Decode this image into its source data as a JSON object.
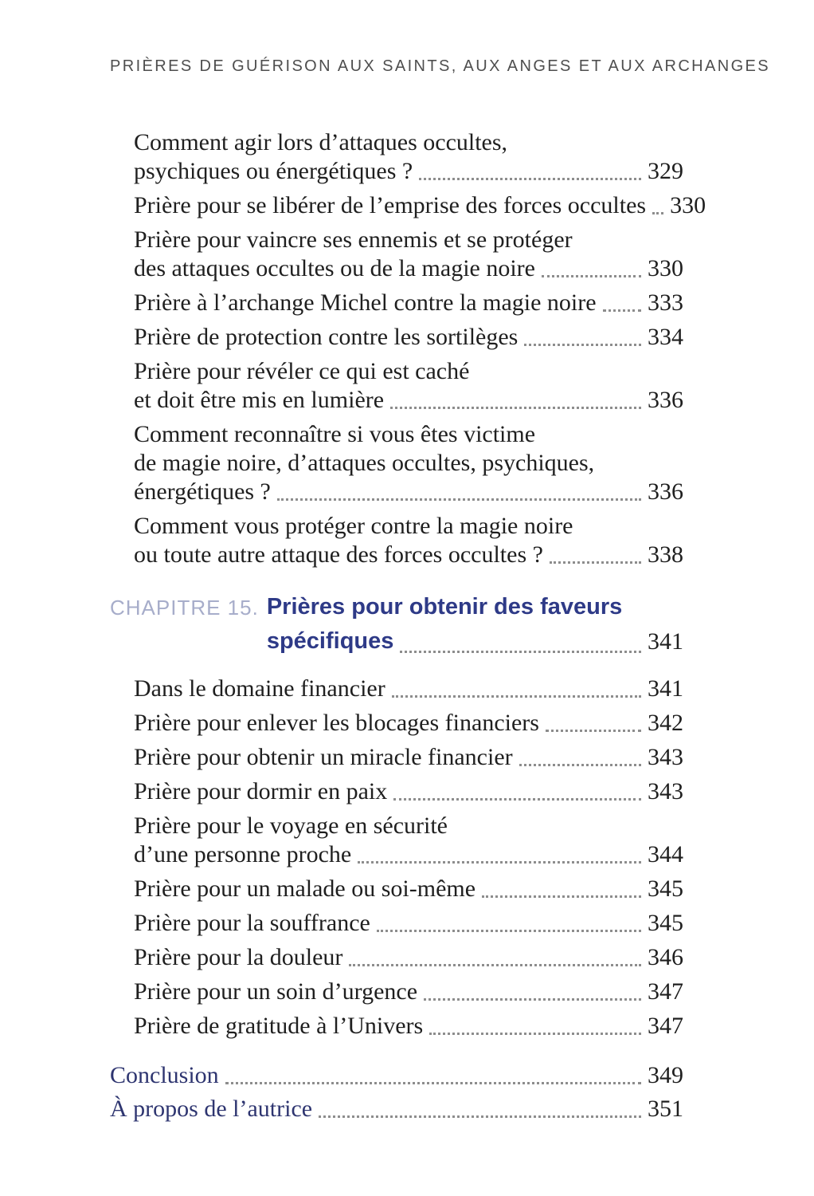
{
  "colors": {
    "chapter_label": "#a7adca",
    "chapter_title": "#2e3a87",
    "backmatter_link": "#2e3570",
    "body_text": "#1f1f1f",
    "running_header": "#4e4e4e",
    "leader_dots": "#8d8d8d"
  },
  "page": {
    "running_header": "PRIÈRES DE GUÉRISON AUX SAINTS, AUX ANGES ET AUX ARCHANGES"
  },
  "toc": {
    "section1_entries": [
      {
        "lines": [
          "Comment agir lors d’attaques occultes,",
          "psychiques ou énergétiques ?"
        ],
        "page": "329"
      },
      {
        "lines": [
          "Prière pour se libérer de l’emprise des forces occultes"
        ],
        "page": "330"
      },
      {
        "lines": [
          "Prière pour vaincre ses ennemis et se protéger",
          "des attaques occultes ou de la magie noire"
        ],
        "page": "330"
      },
      {
        "lines": [
          "Prière à l’archange Michel contre la magie noire"
        ],
        "page": "333"
      },
      {
        "lines": [
          "Prière de protection contre les sortilèges"
        ],
        "page": "334"
      },
      {
        "lines": [
          "Prière pour révéler ce qui est caché",
          "et doit être mis en lumière"
        ],
        "page": "336"
      },
      {
        "lines": [
          "Comment reconnaître si vous êtes victime",
          "de magie noire, d’attaques occultes, psychiques,",
          "énergétiques ?"
        ],
        "page": "336"
      },
      {
        "lines": [
          "Comment vous protéger contre la magie noire",
          "ou toute autre attaque des forces occultes ?"
        ],
        "page": "338"
      }
    ],
    "chapter": {
      "label": "CHAPITRE 15.",
      "title_line1": "Prières pour obtenir des faveurs",
      "title_line2": "spécifiques",
      "page": "341"
    },
    "section2_entries": [
      {
        "lines": [
          "Dans le domaine financier"
        ],
        "page": "341"
      },
      {
        "lines": [
          "Prière pour enlever les blocages financiers"
        ],
        "page": "342"
      },
      {
        "lines": [
          "Prière pour obtenir un miracle financier"
        ],
        "page": "343"
      },
      {
        "lines": [
          "Prière pour dormir en paix"
        ],
        "page": "343"
      },
      {
        "lines": [
          "Prière pour le voyage en sécurité",
          "d’une personne proche"
        ],
        "page": "344"
      },
      {
        "lines": [
          "Prière pour un malade ou soi-même"
        ],
        "page": "345"
      },
      {
        "lines": [
          "Prière pour la souffrance"
        ],
        "page": "345"
      },
      {
        "lines": [
          "Prière pour la douleur"
        ],
        "page": "346"
      },
      {
        "lines": [
          "Prière pour un soin d’urgence"
        ],
        "page": "347"
      },
      {
        "lines": [
          "Prière de gratitude à l’Univers"
        ],
        "page": "347"
      }
    ],
    "backmatter_entries": [
      {
        "lines": [
          "Conclusion"
        ],
        "page": "349"
      },
      {
        "lines": [
          "À propos de l’autrice"
        ],
        "page": "351"
      }
    ]
  }
}
